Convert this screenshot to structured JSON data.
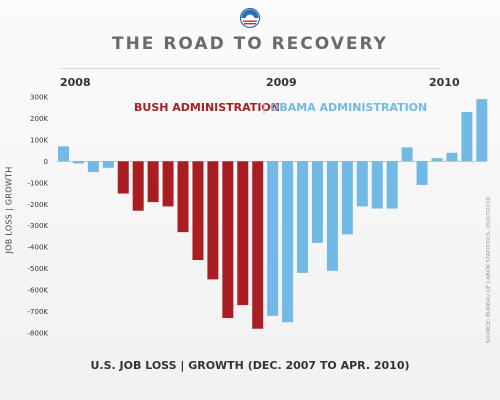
{
  "header": {
    "title": "THE ROAD TO RECOVERY"
  },
  "logo": {
    "icon": "obama-campaign-logo"
  },
  "colors": {
    "bush": "#a91e22",
    "obama": "#73b9e6",
    "title": "#6b6b6b"
  },
  "chart_data": {
    "type": "bar",
    "title": "THE ROAD TO RECOVERY",
    "xlabel": "U.S. JOB LOSS | GROWTH (DEC. 2007 TO APR. 2010)",
    "ylabel": "JOB LOSS | GROWTH",
    "ylim": [
      -800000,
      300000
    ],
    "yticks": [
      "300K",
      "200K",
      "100K",
      "0",
      "-100K",
      "-200K",
      "-300K",
      "-400K",
      "-500K",
      "-600K",
      "-700K",
      "-800K"
    ],
    "year_labels": [
      "2008",
      "2009",
      "2010"
    ],
    "legend": {
      "bush": "BUSH ADMINISTRATION",
      "separator": "|",
      "obama": "OBAMA ADMINISTRATION"
    },
    "source": "SOURCE: BUREAU OF LABOR STATISTICS, 05/07/2010",
    "series": [
      {
        "name": "BUSH ADMINISTRATION",
        "color": "#a91e22",
        "values": [
          -150000,
          -230000,
          -190000,
          -210000,
          -330000,
          -460000,
          -550000,
          -730000,
          -670000,
          -780000
        ]
      },
      {
        "name": "OBAMA ADMINISTRATION",
        "color": "#73b9e6",
        "values": [
          -720000,
          -750000,
          -520000,
          -380000,
          -510000,
          -340000,
          -210000,
          -220000,
          -220000,
          65000,
          -110000,
          15000,
          40000,
          230000,
          290000
        ]
      }
    ],
    "pre_series_values": [
      70000,
      -10000,
      -50000,
      -30000
    ]
  }
}
